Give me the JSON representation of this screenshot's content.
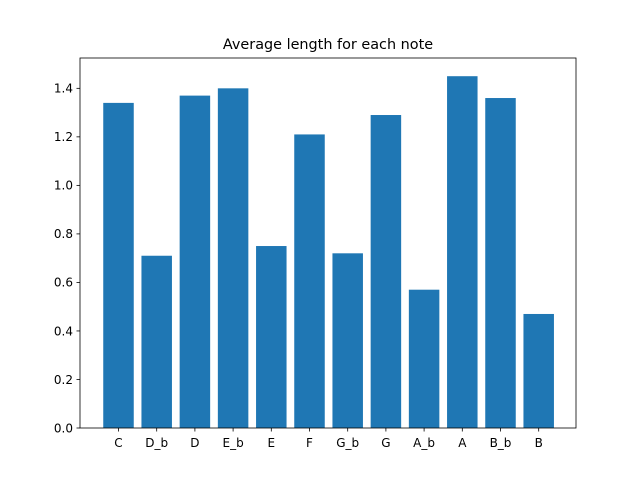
{
  "chart_data": {
    "type": "bar",
    "title": "Average length for each note",
    "xlabel": "",
    "ylabel": "",
    "categories": [
      "C",
      "D_b",
      "D",
      "E_b",
      "E",
      "F",
      "G_b",
      "G",
      "A_b",
      "A",
      "B_b",
      "B"
    ],
    "values": [
      1.34,
      0.71,
      1.37,
      1.4,
      0.75,
      1.21,
      0.72,
      1.29,
      0.57,
      1.45,
      1.36,
      0.47
    ],
    "ylim": [
      0,
      1.525
    ],
    "yticks": [
      0.0,
      0.2,
      0.4,
      0.6,
      0.8,
      1.0,
      1.2,
      1.4
    ],
    "ytick_labels": [
      "0.0",
      "0.2",
      "0.4",
      "0.6",
      "0.8",
      "1.0",
      "1.2",
      "1.4"
    ],
    "grid": false,
    "colors": {
      "bar": "#1f77b4"
    }
  }
}
